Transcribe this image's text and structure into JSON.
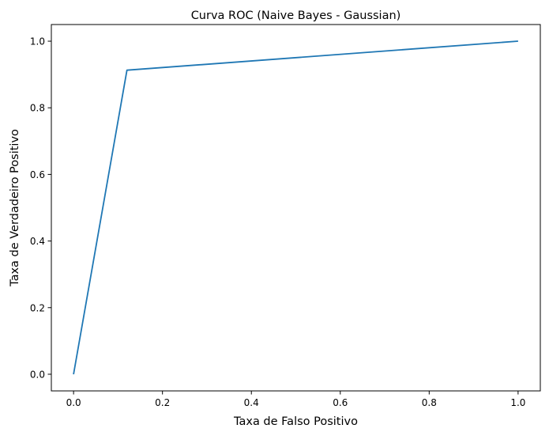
{
  "chart_data": {
    "type": "line",
    "title": "Curva ROC (Naive Bayes - Gaussian)",
    "xlabel": "Taxa de Falso Positivo",
    "ylabel": "Taxa de Verdadeiro Positivo",
    "xlim": [
      -0.05,
      1.05
    ],
    "ylim": [
      -0.05,
      1.05
    ],
    "xticks": [
      0.0,
      0.2,
      0.4,
      0.6,
      0.8,
      1.0
    ],
    "xtick_labels": [
      "0.0",
      "0.2",
      "0.4",
      "0.6",
      "0.8",
      "1.0"
    ],
    "yticks": [
      0.0,
      0.2,
      0.4,
      0.6,
      0.8,
      1.0
    ],
    "ytick_labels": [
      "0.0",
      "0.2",
      "0.4",
      "0.6",
      "0.8",
      "1.0"
    ],
    "grid": false,
    "legend": "none",
    "series": [
      {
        "color": "#1f77b4",
        "x": [
          0.0,
          0.12,
          1.0
        ],
        "y": [
          0.0,
          0.913,
          1.0
        ]
      }
    ]
  }
}
